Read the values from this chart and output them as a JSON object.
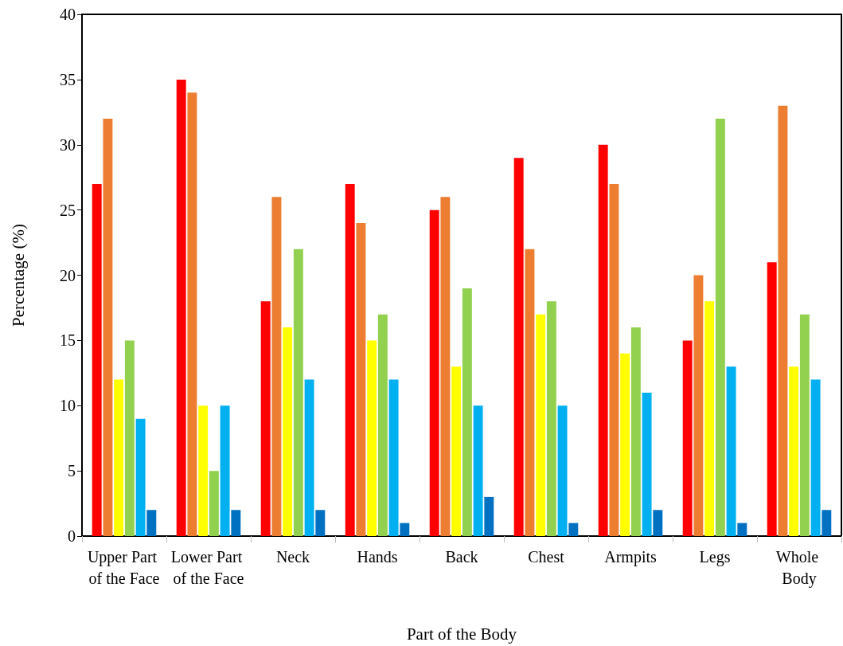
{
  "chart_data": {
    "type": "bar",
    "xlabel": "Part of the Body",
    "ylabel": "Percentage (%)",
    "categories": [
      "Upper Part of the Face",
      "Lower Part of the Face",
      "Neck",
      "Hands",
      "Back",
      "Chest",
      "Armpits",
      "Legs",
      "Whole Body"
    ],
    "series": [
      {
        "color": "#ff0000",
        "values": [
          27,
          35,
          18,
          27,
          25,
          29,
          30,
          15,
          21
        ]
      },
      {
        "color": "#ed7d31",
        "values": [
          32,
          34,
          26,
          24,
          26,
          22,
          27,
          20,
          33
        ]
      },
      {
        "color": "#ffff00",
        "values": [
          12,
          10,
          16,
          15,
          13,
          17,
          14,
          18,
          13
        ]
      },
      {
        "color": "#92d050",
        "values": [
          15,
          5,
          22,
          17,
          19,
          18,
          16,
          32,
          17
        ]
      },
      {
        "color": "#00b0f0",
        "values": [
          9,
          10,
          12,
          12,
          10,
          10,
          11,
          13,
          12
        ]
      },
      {
        "color": "#0070c0",
        "values": [
          2,
          2,
          2,
          1,
          3,
          1,
          2,
          1,
          2
        ]
      }
    ],
    "ylim": [
      0,
      40
    ],
    "yticks": [
      0,
      5,
      10,
      15,
      20,
      25,
      30,
      35,
      40
    ],
    "grid": false
  }
}
